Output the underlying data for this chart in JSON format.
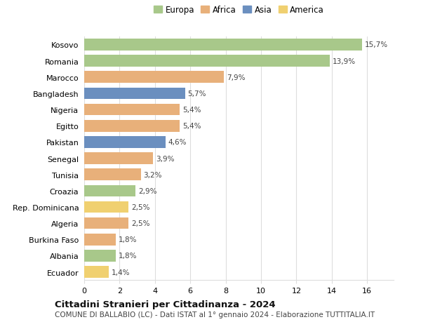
{
  "countries": [
    "Kosovo",
    "Romania",
    "Marocco",
    "Bangladesh",
    "Nigeria",
    "Egitto",
    "Pakistan",
    "Senegal",
    "Tunisia",
    "Croazia",
    "Rep. Dominicana",
    "Algeria",
    "Burkina Faso",
    "Albania",
    "Ecuador"
  ],
  "values": [
    15.7,
    13.9,
    7.9,
    5.7,
    5.4,
    5.4,
    4.6,
    3.9,
    3.2,
    2.9,
    2.5,
    2.5,
    1.8,
    1.8,
    1.4
  ],
  "continents": [
    "Europa",
    "Europa",
    "Africa",
    "Asia",
    "Africa",
    "Africa",
    "Asia",
    "Africa",
    "Africa",
    "Europa",
    "America",
    "Africa",
    "Africa",
    "Europa",
    "America"
  ],
  "continent_colors": {
    "Europa": "#a8c88a",
    "Africa": "#e8b07a",
    "Asia": "#6b8fbf",
    "America": "#f0d070"
  },
  "title": "Cittadini Stranieri per Cittadinanza - 2024",
  "subtitle": "COMUNE DI BALLABIO (LC) - Dati ISTAT al 1° gennaio 2024 - Elaborazione TUTTITALIA.IT",
  "xlim": [
    0,
    17.5
  ],
  "xticks": [
    0,
    2,
    4,
    6,
    8,
    10,
    12,
    14,
    16
  ],
  "legend_order": [
    "Europa",
    "Africa",
    "Asia",
    "America"
  ],
  "background_color": "#ffffff",
  "grid_color": "#dddddd",
  "bar_height": 0.72,
  "label_fontsize": 7.5,
  "tick_fontsize": 8.0,
  "legend_fontsize": 8.5,
  "title_fontsize": 9.5,
  "subtitle_fontsize": 7.5
}
